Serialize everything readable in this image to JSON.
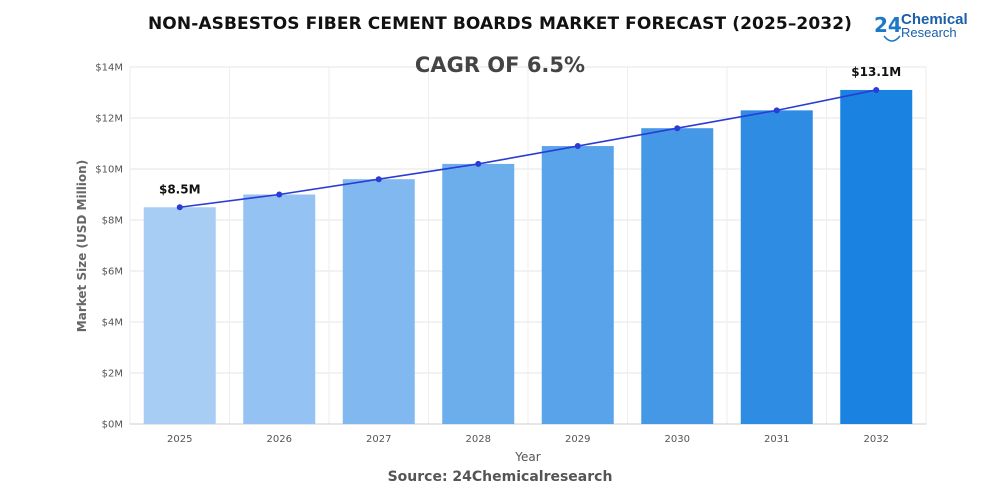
{
  "header": {
    "title": "NON-ASBESTOS FIBER CEMENT BOARDS MARKET FORECAST (2025–2032)"
  },
  "logo": {
    "number": "24",
    "line1": "Chemical",
    "line2": "Research",
    "color": "#1e78c8"
  },
  "footer": {
    "source": "Source: 24Chemicalresearch"
  },
  "chart_data": {
    "type": "bar",
    "annotation": "CAGR OF 6.5%",
    "categories": [
      "2025",
      "2026",
      "2027",
      "2028",
      "2029",
      "2030",
      "2031",
      "2032"
    ],
    "values": [
      8.5,
      9.0,
      9.6,
      10.2,
      10.9,
      11.6,
      12.3,
      13.1
    ],
    "trend_line": true,
    "data_labels": {
      "2025": "$8.5M",
      "2032": "$13.1M"
    },
    "xlabel": "Year",
    "ylabel": "Market Size (USD Million)",
    "ylim": [
      0,
      14
    ],
    "yticks": [
      0,
      2,
      4,
      6,
      8,
      10,
      12,
      14
    ],
    "ytick_labels": [
      "$0M",
      "$2M",
      "$4M",
      "$6M",
      "$8M",
      "$10M",
      "$12M",
      "$14M"
    ],
    "grid": true,
    "bar_colors": [
      "#a8cdf4",
      "#94c2f2",
      "#81b8ef",
      "#6caeec",
      "#58a3e9",
      "#4598e6",
      "#2f8ce3",
      "#1a82e0"
    ],
    "line_color": "#2a3bd6"
  }
}
